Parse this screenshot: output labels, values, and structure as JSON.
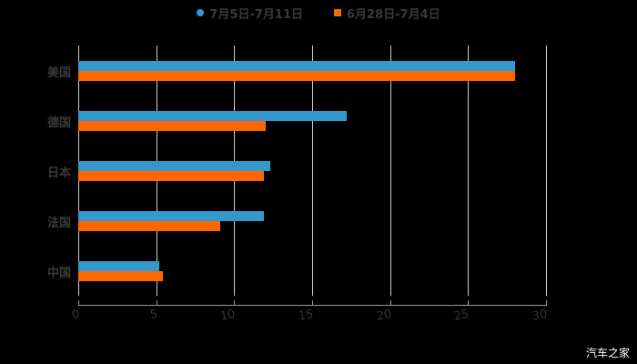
{
  "chart_data": {
    "type": "bar",
    "orientation": "horizontal",
    "title": "",
    "xlabel": "",
    "ylabel": "",
    "categories": [
      "美国",
      "德国",
      "日本",
      "法国",
      "中国"
    ],
    "series": [
      {
        "name": "7月5日-7月11日",
        "color": "#3399cc",
        "marker": "circle",
        "values": [
          28,
          17.2,
          12.3,
          11.9,
          5.2
        ]
      },
      {
        "name": "6月28日-7月4日",
        "color": "#ff6600",
        "marker": "square",
        "values": [
          28,
          12.0,
          11.9,
          9.1,
          5.4
        ]
      }
    ],
    "xlim": [
      0,
      30
    ],
    "x_ticks": [
      "0",
      "5",
      "10",
      "15",
      "20",
      "25",
      "30"
    ],
    "grid": true,
    "legend_position": "top",
    "background": "#000000"
  },
  "legend": {
    "items": [
      {
        "label": "7月5日-7月11日",
        "color": "#3399cc"
      },
      {
        "label": "6月28日-7月4日",
        "color": "#ff6600"
      }
    ]
  },
  "watermark": "汽车之家"
}
